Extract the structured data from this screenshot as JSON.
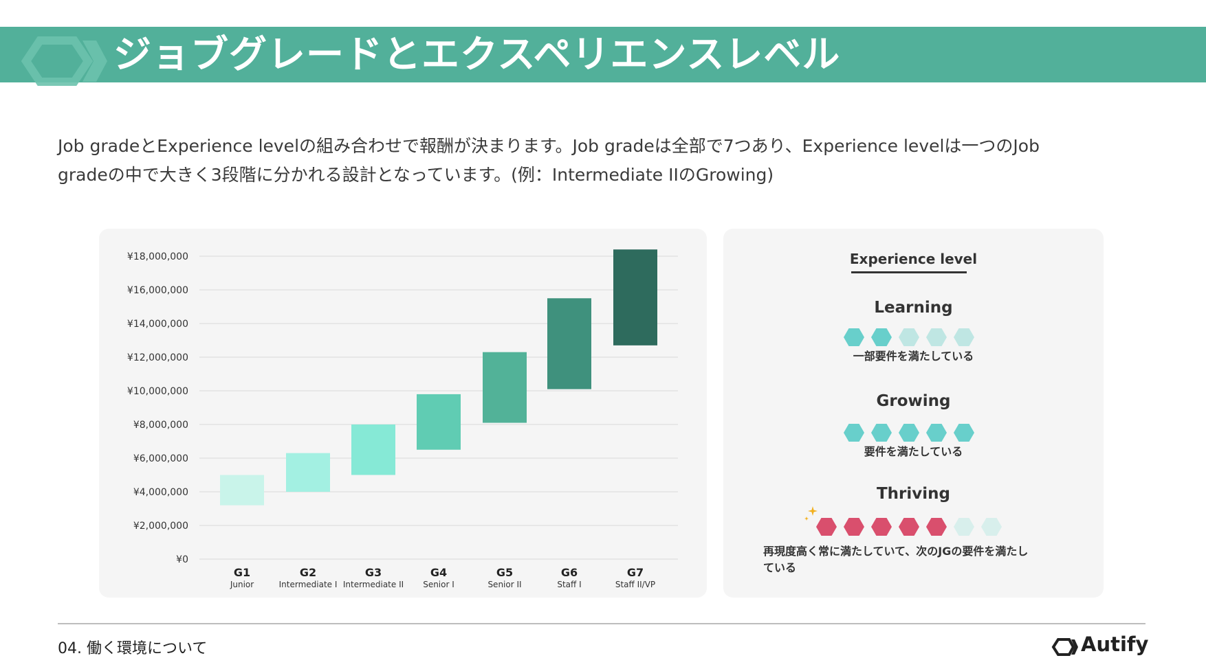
{
  "header": {
    "title": "ジョブグレードとエクスペリエンスレベル"
  },
  "intro": {
    "line1": "Job gradeとExperience levelの組み合わせで報酬が決まります。Job gradeは全部で7つあり、Experience levelは一つのJob",
    "line2": "gradeの中で大きく3段階に分かれる設計となっています。(例：Intermediate IIのGrowing)"
  },
  "chart_data": {
    "type": "bar",
    "subtype": "floating-range",
    "categories": [
      "G1",
      "G2",
      "G3",
      "G4",
      "G5",
      "G6",
      "G7"
    ],
    "sublabels": [
      "Junior",
      "Intermediate I",
      "Intermediate II",
      "Senior I",
      "Senior II",
      "Staff I",
      "Staff II/VP"
    ],
    "ranges": [
      [
        3200000,
        5000000
      ],
      [
        4000000,
        6300000
      ],
      [
        5000000,
        8000000
      ],
      [
        6500000,
        9800000
      ],
      [
        8100000,
        12300000
      ],
      [
        10100000,
        15500000
      ],
      [
        12700000,
        18400000
      ]
    ],
    "colors": [
      "#c9f4ea",
      "#a3f0e2",
      "#86e9d6",
      "#60ccb3",
      "#52b298",
      "#3f917d",
      "#2e6b5d"
    ],
    "yticks": [
      "¥0",
      "¥2,000,000",
      "¥4,000,000",
      "¥6,000,000",
      "¥8,000,000",
      "¥10,000,000",
      "¥12,000,000",
      "¥14,000,000",
      "¥16,000,000",
      "¥18,000,000"
    ],
    "ylim": [
      0,
      18000000
    ],
    "grid": true,
    "title": "",
    "xlabel": "",
    "ylabel": ""
  },
  "experience": {
    "heading": "Experience level",
    "levels": [
      {
        "name": "Learning",
        "desc": "一部要件を満たしている",
        "filled": 2,
        "total": 5,
        "color": "#68cfcb"
      },
      {
        "name": "Growing",
        "desc": "要件を満たしている",
        "filled": 5,
        "total": 5,
        "color": "#68cfcb"
      },
      {
        "name": "Thriving",
        "desc_line1": "再現度高く常に満たしていて、次のJGの要件を満たし",
        "desc_line2": "ている",
        "filled": 5,
        "total": 7,
        "color": "#d94f6d"
      }
    ],
    "hex_empty_color": "#bfe6e3",
    "hex_empty_color_thriving": "#d8efec",
    "sparkle_color": "#f2b01e"
  },
  "footer": {
    "section": "04. 働く環境について",
    "brand": "Autify"
  }
}
